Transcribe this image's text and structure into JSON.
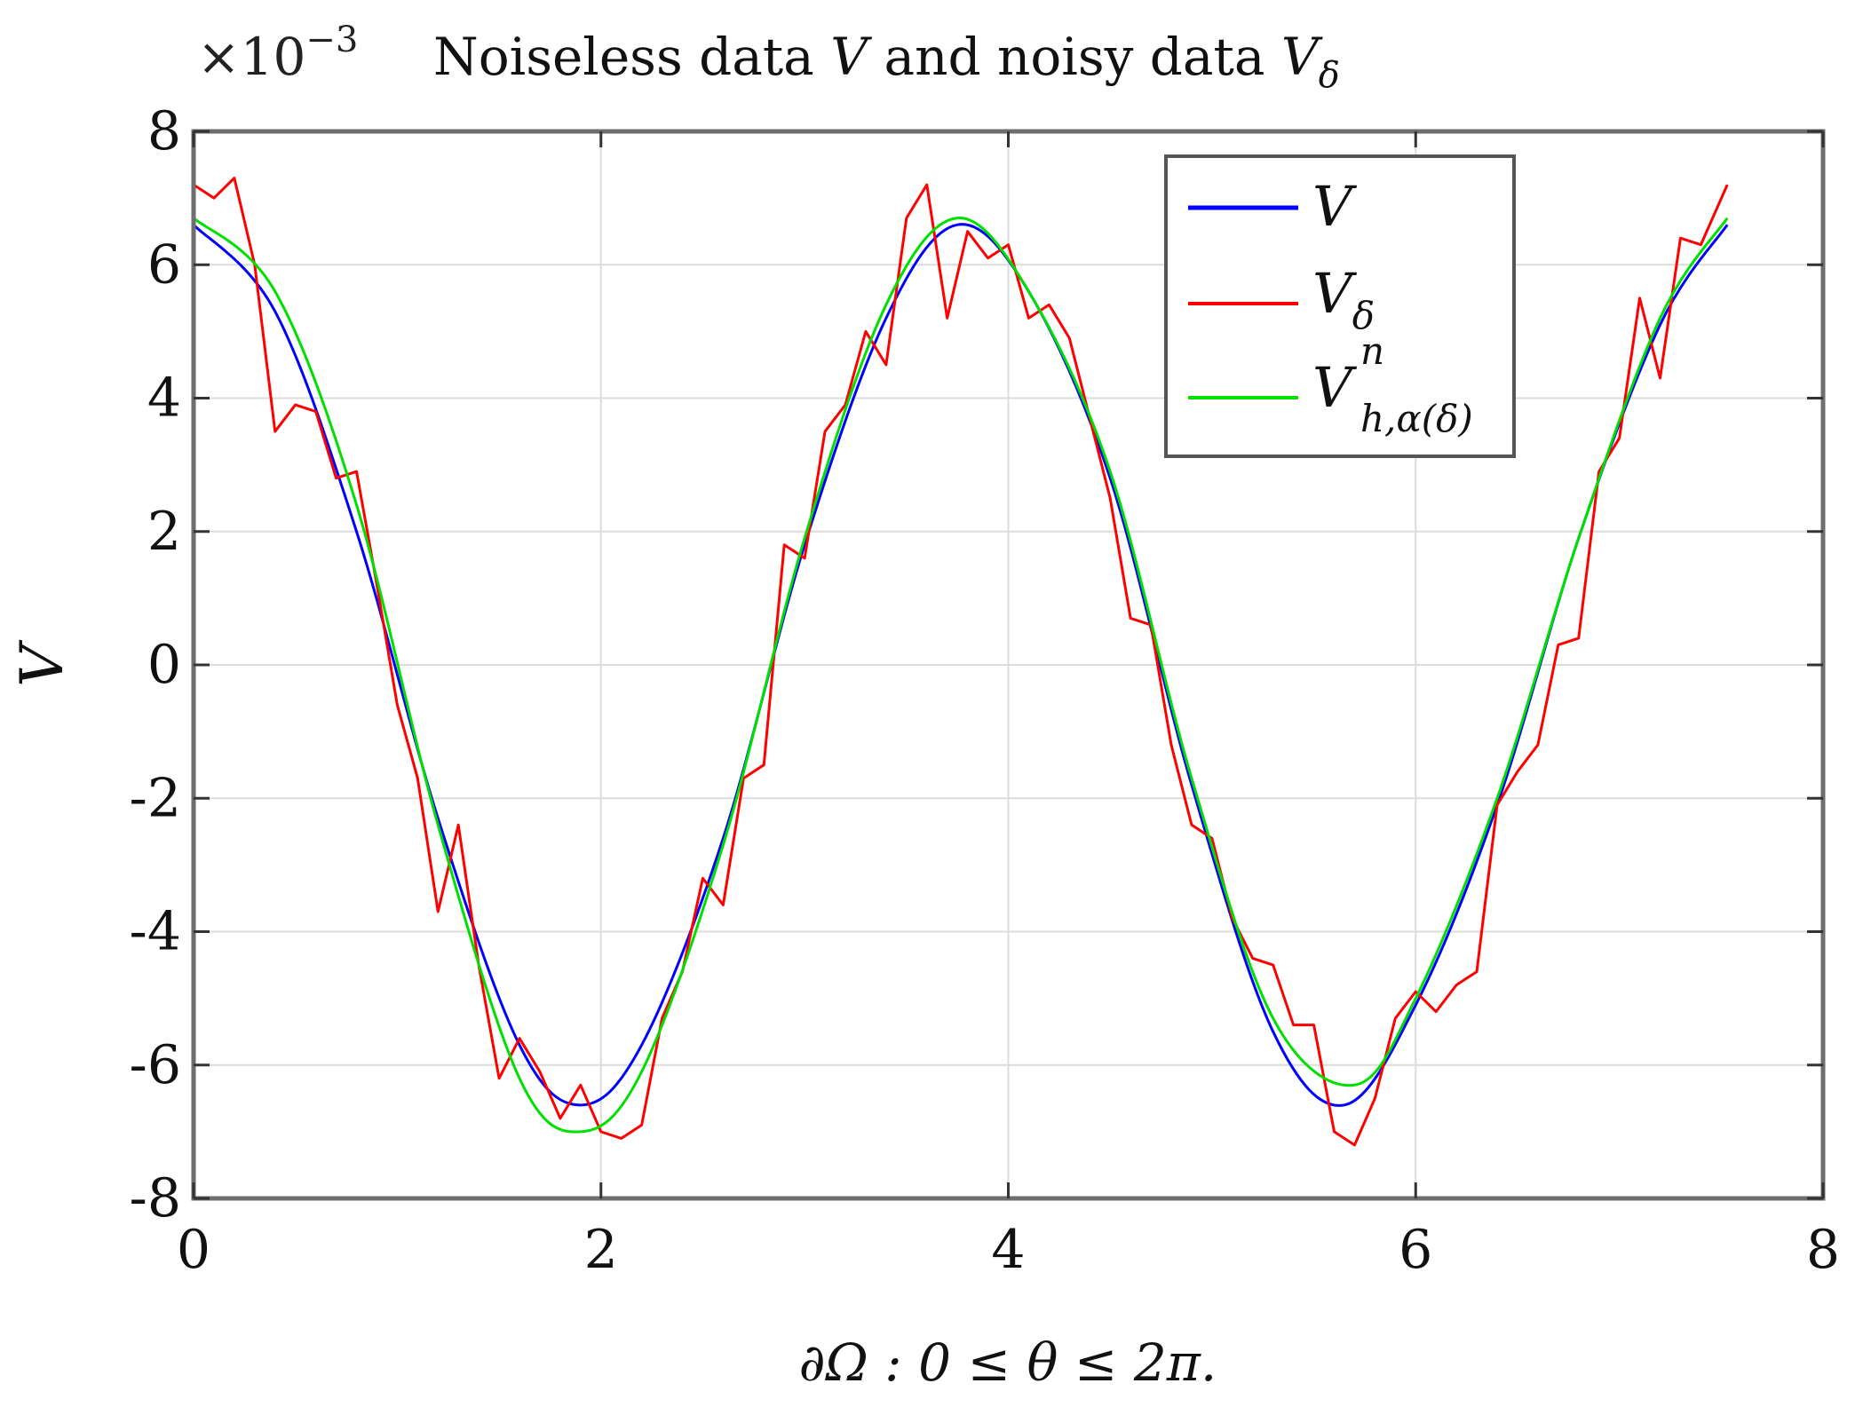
{
  "chart_data": {
    "type": "line",
    "title": {
      "prefix": "Noiseless data ",
      "var1": "V",
      "middle": " and noisy data ",
      "var2": "V",
      "var2_sub": "δ"
    },
    "scale_label": {
      "base": "×10",
      "exponent": "−3"
    },
    "xlabel": "∂Ω : 0 ≤ θ ≤ 2π.",
    "ylabel": "V",
    "xlim": [
      0,
      8
    ],
    "ylim": [
      -8,
      8
    ],
    "xticks": [
      0,
      2,
      4,
      6,
      8
    ],
    "xtick_labels": [
      "0",
      "2",
      "4",
      "6",
      "8"
    ],
    "yticks": [
      -8,
      -6,
      -4,
      -2,
      0,
      2,
      4,
      6,
      8
    ],
    "ytick_labels": [
      "-8",
      "-6",
      "-4",
      "-2",
      "0",
      "2",
      "4",
      "6",
      "8"
    ],
    "grid": true,
    "legend_position": "top-right",
    "series": [
      {
        "name": "V",
        "legend": {
          "main": "V",
          "sub": "",
          "sup": ""
        },
        "color": "#0000ff",
        "x": [
          0.0,
          0.4,
          0.8,
          1.2,
          1.6,
          1.9,
          2.2,
          2.6,
          3.0,
          3.4,
          3.75,
          4.1,
          4.5,
          4.9,
          5.3,
          5.65,
          6.0,
          6.4,
          6.8,
          7.2,
          7.53
        ],
        "y": [
          6.6,
          5.3,
          2.0,
          -2.3,
          -5.7,
          -6.6,
          -5.7,
          -2.6,
          1.8,
          5.2,
          6.6,
          5.6,
          2.8,
          -1.8,
          -5.5,
          -6.6,
          -5.1,
          -2.1,
          1.9,
          5.1,
          6.6
        ]
      },
      {
        "name": "V_delta",
        "legend": {
          "main": "V",
          "sub": "δ",
          "sup": ""
        },
        "color": "#ff0000",
        "x": [
          0.0,
          0.1,
          0.2,
          0.3,
          0.4,
          0.5,
          0.6,
          0.7,
          0.8,
          0.9,
          1.0,
          1.1,
          1.2,
          1.3,
          1.4,
          1.5,
          1.6,
          1.7,
          1.8,
          1.9,
          2.0,
          2.1,
          2.2,
          2.3,
          2.4,
          2.5,
          2.6,
          2.7,
          2.8,
          2.9,
          3.0,
          3.1,
          3.2,
          3.3,
          3.4,
          3.5,
          3.6,
          3.7,
          3.8,
          3.9,
          4.0,
          4.1,
          4.2,
          4.3,
          4.4,
          4.5,
          4.6,
          4.7,
          4.8,
          4.9,
          5.0,
          5.1,
          5.2,
          5.3,
          5.4,
          5.5,
          5.6,
          5.7,
          5.8,
          5.9,
          6.0,
          6.1,
          6.2,
          6.3,
          6.4,
          6.5,
          6.6,
          6.7,
          6.8,
          6.9,
          7.0,
          7.1,
          7.2,
          7.3,
          7.4,
          7.53
        ],
        "y": [
          7.2,
          7.0,
          7.3,
          6.0,
          3.5,
          3.9,
          3.8,
          2.8,
          2.9,
          1.2,
          -0.6,
          -1.7,
          -3.7,
          -2.4,
          -4.5,
          -6.2,
          -5.6,
          -6.1,
          -6.8,
          -6.3,
          -7.0,
          -7.1,
          -6.9,
          -5.3,
          -4.6,
          -3.2,
          -3.6,
          -1.7,
          -1.5,
          1.8,
          1.6,
          3.5,
          3.9,
          5.0,
          4.5,
          6.7,
          7.2,
          5.2,
          6.5,
          6.1,
          6.3,
          5.2,
          5.4,
          4.9,
          3.7,
          2.5,
          0.7,
          0.6,
          -1.2,
          -2.4,
          -2.6,
          -3.8,
          -4.4,
          -4.5,
          -5.4,
          -5.4,
          -7.0,
          -7.2,
          -6.5,
          -5.3,
          -4.9,
          -5.2,
          -4.8,
          -4.6,
          -2.1,
          -1.6,
          -1.2,
          0.3,
          0.4,
          2.9,
          3.4,
          5.5,
          4.3,
          6.4,
          6.3,
          7.2
        ]
      },
      {
        "name": "V_h_alpha_delta_n",
        "legend": {
          "main": "V",
          "sub": "h,α(δ)",
          "sup": "n"
        },
        "color": "#00e000",
        "x": [
          0.0,
          0.4,
          0.8,
          1.2,
          1.6,
          1.9,
          2.2,
          2.6,
          3.0,
          3.4,
          3.75,
          4.1,
          4.5,
          4.9,
          5.3,
          5.7,
          6.0,
          6.4,
          6.8,
          7.2,
          7.53
        ],
        "y": [
          6.7,
          5.6,
          2.4,
          -2.4,
          -6.2,
          -7.0,
          -6.1,
          -2.7,
          1.9,
          5.4,
          6.7,
          5.6,
          2.9,
          -1.7,
          -5.3,
          -6.3,
          -5.0,
          -2.0,
          1.9,
          5.2,
          6.7
        ]
      }
    ]
  }
}
